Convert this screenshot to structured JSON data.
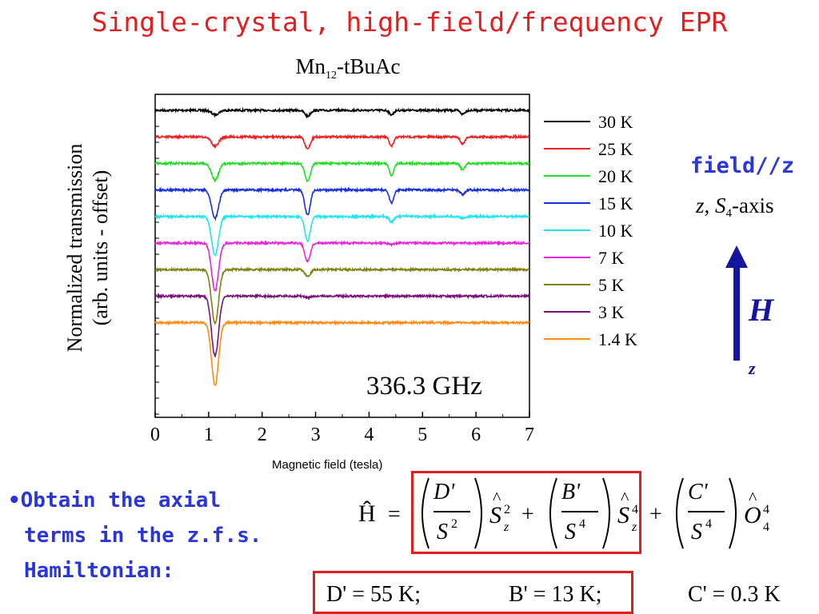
{
  "slide": {
    "title": "Single-crystal, high-field/frequency EPR",
    "plot_title_main": "Mn",
    "plot_title_sub": "12",
    "plot_title_rest": "-tBuAc",
    "ylabel_line1": "Normalized transmission",
    "ylabel_line2": "(arb. units - offset)",
    "frequency": "336.3 GHz",
    "xlabel": "Magnetic field (tesla)",
    "field_dir": "field//z",
    "axis_z": "z,",
    "axis_s": "S",
    "axis_s_sub": "4",
    "axis_rest": "-axis",
    "arrow_label": "H",
    "arrow_sub": "z",
    "bullet_line1": "•Obtain the axial",
    "bullet_line2": "terms in the z.f.s.",
    "bullet_line3": "Hamiltonian:",
    "ham_lhs": "Ĥ",
    "ham_eq": "=",
    "ham_plus": "+",
    "ham_D": "D'",
    "ham_B": "B'",
    "ham_C": "C'",
    "ham_S": "S",
    "ham_S2": "2",
    "ham_S4": "4",
    "ham_Sz": "z",
    "ham_O": "O",
    "ham_O_sub": "4",
    "ham_O_sup": "4",
    "param_D": "D' = 55 K;",
    "param_B": "B' = 13 K;",
    "param_C": "C' = 0.3 K"
  },
  "colors": {
    "title": "#e02020",
    "blue_text": "#2a36d8",
    "arrow": "#1515a0",
    "box": "#e02020"
  },
  "chart_data": {
    "type": "line",
    "title": "Mn12-tBuAc",
    "xlabel": "Magnetic field (tesla)",
    "ylabel": "Normalized transmission (arb. units - offset)",
    "annotation": "336.3 GHz",
    "xlim": [
      0,
      7
    ],
    "xticks": [
      "0",
      "1",
      "2",
      "3",
      "4",
      "5",
      "6",
      "7"
    ],
    "yticks_shown": false,
    "legend_position": "right",
    "peak_fields": [
      1.12,
      2.85,
      4.42,
      5.75
    ],
    "series": [
      {
        "name": "30 K",
        "color": "#000000",
        "offset": 9.0,
        "dips": [
          0.35,
          0.45,
          0.35,
          0.3
        ]
      },
      {
        "name": "25 K",
        "color": "#ee2020",
        "offset": 8.0,
        "dips": [
          0.75,
          0.95,
          0.75,
          0.55
        ]
      },
      {
        "name": "20 K",
        "color": "#22dd22",
        "offset": 7.0,
        "dips": [
          1.3,
          1.4,
          0.95,
          0.5
        ]
      },
      {
        "name": "15 K",
        "color": "#1530e0",
        "offset": 6.0,
        "dips": [
          2.2,
          1.95,
          1.05,
          0.35
        ]
      },
      {
        "name": "10 K",
        "color": "#22e5f0",
        "offset": 5.0,
        "dips": [
          3.0,
          1.95,
          0.45,
          0.15
        ]
      },
      {
        "name": "7 K",
        "color": "#ee22dd",
        "offset": 4.0,
        "dips": [
          3.7,
          1.45,
          0.1,
          0.0
        ]
      },
      {
        "name": "5 K",
        "color": "#808010",
        "offset": 3.0,
        "dips": [
          4.2,
          0.55,
          0.0,
          0.0
        ]
      },
      {
        "name": "3 K",
        "color": "#7a107a",
        "offset": 2.0,
        "dips": [
          4.7,
          0.1,
          0.0,
          0.0
        ]
      },
      {
        "name": "1.4 K",
        "color": "#ff8a10",
        "offset": 1.0,
        "dips": [
          4.9,
          0.0,
          0.0,
          0.0
        ]
      }
    ]
  }
}
